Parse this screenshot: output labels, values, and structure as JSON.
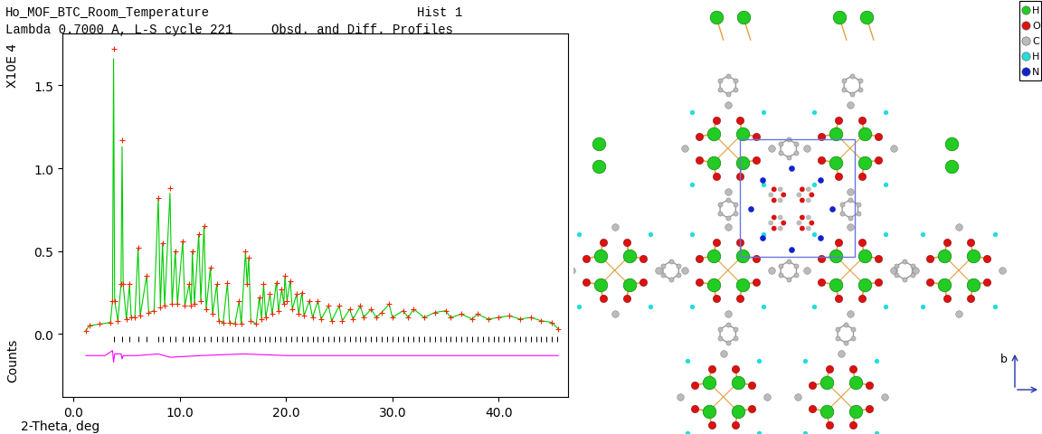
{
  "chart_data": {
    "type": "line",
    "title": "Ho_MOF_BTC_Room_Temperature",
    "annotations": [
      "Hist 1",
      "Lambda 0.7000 A, L-S cycle 221",
      "Obsd. and Diff. Profiles"
    ],
    "xlabel": "2-Theta, deg",
    "ylabel": [
      "X10E 4",
      "Counts"
    ],
    "xlim": [
      -1.0,
      46.5
    ],
    "ylim": [
      -0.38,
      1.81
    ],
    "xticks": [
      0.0,
      10.0,
      20.0,
      30.0,
      40.0
    ],
    "yticks": [
      0.0,
      0.5,
      1.0,
      1.5
    ],
    "x": [
      1.2,
      1.5,
      2.5,
      3.5,
      3.7,
      3.8,
      3.9,
      4.2,
      4.5,
      4.6,
      4.7,
      5.0,
      5.3,
      5.45,
      5.8,
      6.1,
      6.3,
      6.9,
      7.1,
      7.6,
      8.0,
      8.2,
      8.4,
      8.6,
      9.1,
      9.3,
      9.6,
      9.8,
      10.3,
      10.5,
      10.9,
      11.1,
      11.2,
      11.4,
      11.8,
      12.0,
      12.3,
      12.5,
      12.9,
      13.1,
      13.5,
      13.7,
      14.1,
      14.5,
      14.7,
      15.2,
      15.6,
      15.8,
      16.2,
      16.35,
      16.5,
      16.7,
      17.2,
      17.5,
      17.7,
      17.9,
      18.1,
      18.5,
      18.7,
      19.1,
      19.3,
      19.6,
      19.8,
      19.9,
      20.1,
      20.4,
      20.6,
      21.0,
      21.2,
      21.5,
      21.7,
      22.2,
      22.5,
      23.0,
      23.3,
      24.0,
      24.3,
      25.0,
      25.3,
      26.0,
      26.3,
      27.0,
      27.3,
      28.0,
      28.5,
      29.0,
      29.7,
      30.0,
      31.0,
      31.5,
      32.0,
      33.0,
      34.0,
      35.0,
      35.5,
      36.5,
      37.5,
      38.0,
      39.0,
      40.0,
      41.0,
      42.0,
      43.0,
      44.0,
      45.0,
      45.6
    ],
    "series": [
      {
        "type": "line",
        "color": "#00cc00",
        "line_style": "solid",
        "values": [
          0.02,
          0.05,
          0.06,
          0.07,
          0.2,
          1.66,
          0.2,
          0.08,
          0.3,
          1.13,
          0.3,
          0.09,
          0.3,
          0.1,
          0.1,
          0.52,
          0.11,
          0.35,
          0.13,
          0.14,
          0.82,
          0.16,
          0.55,
          0.17,
          0.85,
          0.18,
          0.5,
          0.18,
          0.56,
          0.17,
          0.3,
          0.17,
          0.5,
          0.18,
          0.6,
          0.2,
          0.65,
          0.15,
          0.4,
          0.12,
          0.3,
          0.08,
          0.07,
          0.31,
          0.07,
          0.06,
          0.2,
          0.06,
          0.5,
          0.3,
          0.46,
          0.08,
          0.06,
          0.22,
          0.09,
          0.3,
          0.1,
          0.24,
          0.12,
          0.31,
          0.14,
          0.27,
          0.18,
          0.35,
          0.2,
          0.32,
          0.15,
          0.24,
          0.12,
          0.25,
          0.11,
          0.2,
          0.1,
          0.2,
          0.09,
          0.17,
          0.08,
          0.17,
          0.08,
          0.15,
          0.09,
          0.17,
          0.1,
          0.15,
          0.1,
          0.13,
          0.18,
          0.1,
          0.14,
          0.1,
          0.15,
          0.1,
          0.13,
          0.14,
          0.1,
          0.12,
          0.09,
          0.12,
          0.09,
          0.1,
          0.11,
          0.09,
          0.1,
          0.08,
          0.07,
          0.03
        ]
      },
      {
        "type": "scatter",
        "color": "#ff2200",
        "marker": "plus",
        "values": [
          0.02,
          0.05,
          0.06,
          0.07,
          0.2,
          1.72,
          0.2,
          0.08,
          0.3,
          1.17,
          0.3,
          0.09,
          0.3,
          0.1,
          0.1,
          0.52,
          0.11,
          0.35,
          0.13,
          0.14,
          0.82,
          0.16,
          0.55,
          0.17,
          0.88,
          0.18,
          0.5,
          0.18,
          0.56,
          0.17,
          0.3,
          0.17,
          0.5,
          0.18,
          0.6,
          0.2,
          0.65,
          0.15,
          0.4,
          0.12,
          0.3,
          0.08,
          0.07,
          0.31,
          0.07,
          0.06,
          0.2,
          0.06,
          0.5,
          0.3,
          0.46,
          0.08,
          0.06,
          0.22,
          0.09,
          0.3,
          0.1,
          0.24,
          0.12,
          0.31,
          0.14,
          0.27,
          0.18,
          0.35,
          0.2,
          0.32,
          0.15,
          0.24,
          0.12,
          0.25,
          0.11,
          0.2,
          0.1,
          0.2,
          0.09,
          0.17,
          0.08,
          0.17,
          0.08,
          0.15,
          0.09,
          0.17,
          0.1,
          0.15,
          0.1,
          0.13,
          0.18,
          0.1,
          0.14,
          0.1,
          0.15,
          0.1,
          0.13,
          0.14,
          0.1,
          0.12,
          0.09,
          0.12,
          0.09,
          0.1,
          0.11,
          0.09,
          0.1,
          0.08,
          0.07,
          0.03
        ]
      },
      {
        "type": "line",
        "color": "#ff00ff",
        "line_style": "solid",
        "x": [
          1.2,
          3.0,
          3.7,
          3.8,
          3.9,
          4.5,
          4.6,
          4.7,
          6.0,
          8.0,
          9.1,
          12.0,
          16.0,
          20.0,
          25.0,
          30.0,
          35.0,
          40.0,
          45.6
        ],
        "values": [
          -0.13,
          -0.13,
          -0.1,
          -0.17,
          -0.12,
          -0.12,
          -0.15,
          -0.13,
          -0.13,
          -0.12,
          -0.14,
          -0.13,
          -0.12,
          -0.13,
          -0.13,
          -0.13,
          -0.13,
          -0.13,
          -0.13
        ]
      },
      {
        "type": "ticks",
        "color": "#000000",
        "level": -0.03,
        "x": [
          3.8,
          4.6,
          5.3,
          6.1,
          6.9,
          8.0,
          8.4,
          9.1,
          9.6,
          10.3,
          10.9,
          11.2,
          11.8,
          12.3,
          12.9,
          13.5,
          14.0,
          14.5,
          15.0,
          15.5,
          16.0,
          16.5,
          17.0,
          17.5,
          18.0,
          18.5,
          19.0,
          19.5,
          20.0,
          20.5,
          21.0,
          21.5,
          22.0,
          22.5,
          23.0,
          23.5,
          24.0,
          24.5,
          25.0,
          25.5,
          26.0,
          26.5,
          27.0,
          27.5,
          28.0,
          28.5,
          29.0,
          29.5,
          30.0,
          30.5,
          31.0,
          31.5,
          32.0,
          32.5,
          33.0,
          33.5,
          34.0,
          34.5,
          35.0,
          35.5,
          36.0,
          36.5,
          37.0,
          37.5,
          38.0,
          38.5,
          39.0,
          39.5,
          40.0,
          40.5,
          41.0,
          41.5,
          42.0,
          42.5,
          43.0,
          43.5,
          44.0,
          44.5,
          45.0,
          45.5
        ]
      }
    ]
  },
  "structure": {
    "legend": [
      {
        "label": "H",
        "color": "#22cc22"
      },
      {
        "label": "O",
        "color": "#dd1111"
      },
      {
        "label": "C",
        "color": "#bbbbbb"
      },
      {
        "label": "H",
        "color": "#22dddd"
      },
      {
        "label": "N",
        "color": "#1122cc"
      }
    ],
    "axis_label": "b"
  }
}
